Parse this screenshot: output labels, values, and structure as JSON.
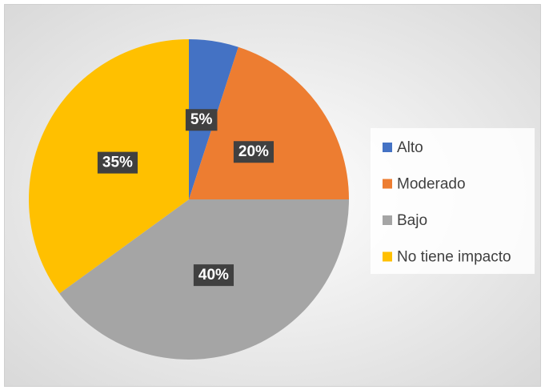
{
  "chart_data": {
    "type": "pie",
    "categories": [
      "Alto",
      "Moderado",
      "Bajo",
      "No tiene impacto"
    ],
    "values": [
      5,
      20,
      40,
      35
    ],
    "value_labels": [
      "5%",
      "20%",
      "40%",
      "35%"
    ],
    "colors": [
      "#4472c4",
      "#ed7d31",
      "#a5a5a5",
      "#ffc000"
    ],
    "legend": "right"
  }
}
